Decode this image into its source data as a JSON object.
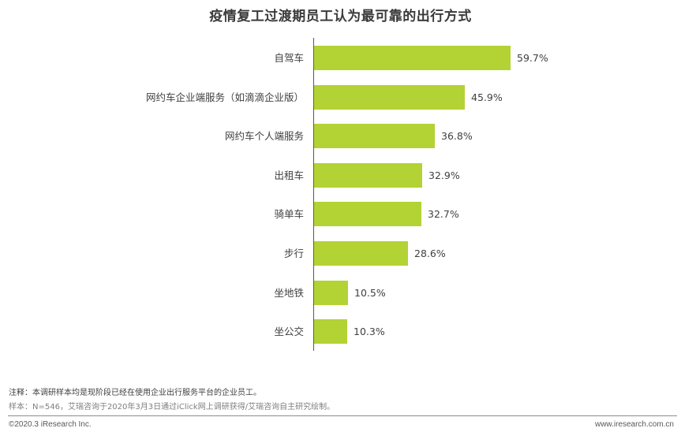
{
  "chart_data": {
    "type": "bar",
    "orientation": "horizontal",
    "title": "疫情复工过渡期员工认为最可靠的出行方式",
    "xlabel": "",
    "ylabel": "",
    "categories": [
      "自驾车",
      "网约车企业端服务（如滴滴企业版）",
      "网约车个人端服务",
      "出租车",
      "骑单车",
      "步行",
      "坐地铁",
      "坐公交"
    ],
    "values": [
      59.7,
      45.9,
      36.8,
      32.9,
      32.7,
      28.6,
      10.5,
      10.3
    ],
    "value_labels": [
      "59.7%",
      "45.9%",
      "36.8%",
      "32.9%",
      "32.7%",
      "28.6%",
      "10.5%",
      "10.3%"
    ],
    "unit": "%",
    "xlim": [
      0,
      100
    ],
    "grid": false,
    "legend": "none",
    "bar_color": "#b3d234"
  },
  "notes": {
    "annotation": "注释：本调研样本均是现阶段已经在使用企业出行服务平台的企业员工。",
    "sample": "样本：N=546，艾瑞咨询于2020年3月3日通过iClick网上调研获得/艾瑞咨询自主研究绘制。"
  },
  "footer": {
    "copyright": "©2020.3 iResearch Inc.",
    "website": "www.iresearch.com.cn"
  }
}
